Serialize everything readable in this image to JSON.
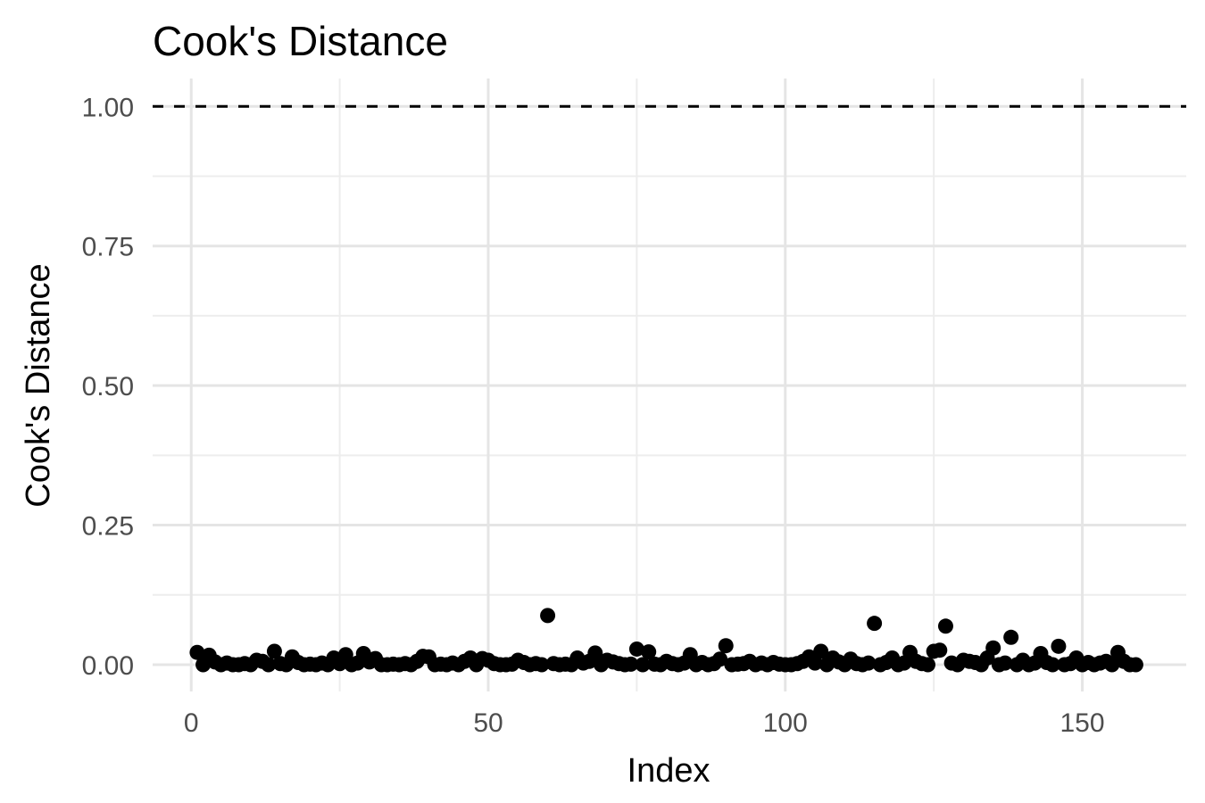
{
  "chart_data": {
    "type": "scatter",
    "title": "Cook's Distance",
    "xlabel": "Index",
    "ylabel": "Cook's Distance",
    "xlim": [
      -6.5,
      167.5
    ],
    "ylim": [
      -0.048,
      1.05
    ],
    "x_ticks": [
      0,
      50,
      100,
      150
    ],
    "x_tick_labels": [
      "0",
      "50",
      "100",
      "150"
    ],
    "x_minor_ticks": [
      25,
      75,
      125
    ],
    "y_ticks": [
      0,
      0.25,
      0.5,
      0.75,
      1
    ],
    "y_tick_labels": [
      "0.00",
      "0.25",
      "0.50",
      "0.75",
      "1.00"
    ],
    "y_minor_ticks": [
      0.125,
      0.375,
      0.625,
      0.875
    ],
    "reference_line": {
      "y": 1.0,
      "style": "dashed",
      "color": "#000000"
    },
    "grid": true,
    "legend": "none",
    "point_color": "#000000",
    "points": [
      {
        "x": 1,
        "y": 0.022
      },
      {
        "x": 2,
        "y": 0.0
      },
      {
        "x": 3,
        "y": 0.017
      },
      {
        "x": 4,
        "y": 0.005
      },
      {
        "x": 5,
        "y": 0.0
      },
      {
        "x": 6,
        "y": 0.003
      },
      {
        "x": 7,
        "y": 0.0
      },
      {
        "x": 8,
        "y": 0.0
      },
      {
        "x": 9,
        "y": 0.002
      },
      {
        "x": 10,
        "y": 0.0
      },
      {
        "x": 11,
        "y": 0.008
      },
      {
        "x": 12,
        "y": 0.006
      },
      {
        "x": 13,
        "y": 0.0
      },
      {
        "x": 14,
        "y": 0.024
      },
      {
        "x": 15,
        "y": 0.002
      },
      {
        "x": 16,
        "y": 0.0
      },
      {
        "x": 17,
        "y": 0.014
      },
      {
        "x": 18,
        "y": 0.004
      },
      {
        "x": 19,
        "y": 0.0
      },
      {
        "x": 20,
        "y": 0.001
      },
      {
        "x": 21,
        "y": 0.0
      },
      {
        "x": 22,
        "y": 0.003
      },
      {
        "x": 23,
        "y": 0.0
      },
      {
        "x": 24,
        "y": 0.012
      },
      {
        "x": 25,
        "y": 0.002
      },
      {
        "x": 26,
        "y": 0.018
      },
      {
        "x": 27,
        "y": 0.0
      },
      {
        "x": 28,
        "y": 0.003
      },
      {
        "x": 29,
        "y": 0.02
      },
      {
        "x": 30,
        "y": 0.005
      },
      {
        "x": 31,
        "y": 0.011
      },
      {
        "x": 32,
        "y": 0.0
      },
      {
        "x": 33,
        "y": 0.0
      },
      {
        "x": 34,
        "y": 0.001
      },
      {
        "x": 35,
        "y": 0.0
      },
      {
        "x": 36,
        "y": 0.002
      },
      {
        "x": 37,
        "y": 0.0
      },
      {
        "x": 38,
        "y": 0.006
      },
      {
        "x": 39,
        "y": 0.015
      },
      {
        "x": 40,
        "y": 0.014
      },
      {
        "x": 41,
        "y": 0.0
      },
      {
        "x": 42,
        "y": 0.001
      },
      {
        "x": 43,
        "y": 0.0
      },
      {
        "x": 44,
        "y": 0.003
      },
      {
        "x": 45,
        "y": 0.0
      },
      {
        "x": 46,
        "y": 0.006
      },
      {
        "x": 47,
        "y": 0.012
      },
      {
        "x": 48,
        "y": 0.0
      },
      {
        "x": 49,
        "y": 0.011
      },
      {
        "x": 50,
        "y": 0.008
      },
      {
        "x": 51,
        "y": 0.002
      },
      {
        "x": 52,
        "y": 0.0
      },
      {
        "x": 53,
        "y": 0.0
      },
      {
        "x": 54,
        "y": 0.001
      },
      {
        "x": 55,
        "y": 0.008
      },
      {
        "x": 56,
        "y": 0.004
      },
      {
        "x": 57,
        "y": 0.0
      },
      {
        "x": 58,
        "y": 0.002
      },
      {
        "x": 59,
        "y": 0.0
      },
      {
        "x": 60,
        "y": 0.088
      },
      {
        "x": 61,
        "y": 0.002
      },
      {
        "x": 62,
        "y": 0.0
      },
      {
        "x": 63,
        "y": 0.001
      },
      {
        "x": 64,
        "y": 0.0
      },
      {
        "x": 65,
        "y": 0.012
      },
      {
        "x": 66,
        "y": 0.003
      },
      {
        "x": 67,
        "y": 0.006
      },
      {
        "x": 68,
        "y": 0.021
      },
      {
        "x": 69,
        "y": 0.0
      },
      {
        "x": 70,
        "y": 0.008
      },
      {
        "x": 71,
        "y": 0.005
      },
      {
        "x": 72,
        "y": 0.002
      },
      {
        "x": 73,
        "y": 0.0
      },
      {
        "x": 74,
        "y": 0.001
      },
      {
        "x": 75,
        "y": 0.028
      },
      {
        "x": 76,
        "y": 0.0
      },
      {
        "x": 77,
        "y": 0.023
      },
      {
        "x": 78,
        "y": 0.001
      },
      {
        "x": 79,
        "y": 0.0
      },
      {
        "x": 80,
        "y": 0.006
      },
      {
        "x": 81,
        "y": 0.002
      },
      {
        "x": 82,
        "y": 0.0
      },
      {
        "x": 83,
        "y": 0.003
      },
      {
        "x": 84,
        "y": 0.018
      },
      {
        "x": 85,
        "y": 0.0
      },
      {
        "x": 86,
        "y": 0.004
      },
      {
        "x": 87,
        "y": 0.0
      },
      {
        "x": 88,
        "y": 0.002
      },
      {
        "x": 89,
        "y": 0.01
      },
      {
        "x": 90,
        "y": 0.034
      },
      {
        "x": 91,
        "y": 0.0
      },
      {
        "x": 92,
        "y": 0.001
      },
      {
        "x": 93,
        "y": 0.002
      },
      {
        "x": 94,
        "y": 0.006
      },
      {
        "x": 95,
        "y": 0.0
      },
      {
        "x": 96,
        "y": 0.003
      },
      {
        "x": 97,
        "y": 0.0
      },
      {
        "x": 98,
        "y": 0.004
      },
      {
        "x": 99,
        "y": 0.001
      },
      {
        "x": 100,
        "y": 0.0
      },
      {
        "x": 101,
        "y": 0.0
      },
      {
        "x": 102,
        "y": 0.002
      },
      {
        "x": 103,
        "y": 0.006
      },
      {
        "x": 104,
        "y": 0.014
      },
      {
        "x": 105,
        "y": 0.003
      },
      {
        "x": 106,
        "y": 0.024
      },
      {
        "x": 107,
        "y": 0.0
      },
      {
        "x": 108,
        "y": 0.012
      },
      {
        "x": 109,
        "y": 0.005
      },
      {
        "x": 110,
        "y": 0.0
      },
      {
        "x": 111,
        "y": 0.01
      },
      {
        "x": 112,
        "y": 0.002
      },
      {
        "x": 113,
        "y": 0.0
      },
      {
        "x": 114,
        "y": 0.003
      },
      {
        "x": 115,
        "y": 0.074
      },
      {
        "x": 116,
        "y": 0.0
      },
      {
        "x": 117,
        "y": 0.004
      },
      {
        "x": 118,
        "y": 0.012
      },
      {
        "x": 119,
        "y": 0.0
      },
      {
        "x": 120,
        "y": 0.003
      },
      {
        "x": 121,
        "y": 0.022
      },
      {
        "x": 122,
        "y": 0.006
      },
      {
        "x": 123,
        "y": 0.002
      },
      {
        "x": 124,
        "y": 0.0
      },
      {
        "x": 125,
        "y": 0.024
      },
      {
        "x": 126,
        "y": 0.026
      },
      {
        "x": 127,
        "y": 0.069
      },
      {
        "x": 128,
        "y": 0.003
      },
      {
        "x": 129,
        "y": 0.0
      },
      {
        "x": 130,
        "y": 0.008
      },
      {
        "x": 131,
        "y": 0.006
      },
      {
        "x": 132,
        "y": 0.004
      },
      {
        "x": 133,
        "y": 0.0
      },
      {
        "x": 134,
        "y": 0.012
      },
      {
        "x": 135,
        "y": 0.03
      },
      {
        "x": 136,
        "y": 0.0
      },
      {
        "x": 137,
        "y": 0.003
      },
      {
        "x": 138,
        "y": 0.049
      },
      {
        "x": 139,
        "y": 0.0
      },
      {
        "x": 140,
        "y": 0.008
      },
      {
        "x": 141,
        "y": 0.0
      },
      {
        "x": 142,
        "y": 0.003
      },
      {
        "x": 143,
        "y": 0.02
      },
      {
        "x": 144,
        "y": 0.004
      },
      {
        "x": 145,
        "y": 0.0
      },
      {
        "x": 146,
        "y": 0.033
      },
      {
        "x": 147,
        "y": 0.0
      },
      {
        "x": 148,
        "y": 0.002
      },
      {
        "x": 149,
        "y": 0.012
      },
      {
        "x": 150,
        "y": 0.0
      },
      {
        "x": 151,
        "y": 0.004
      },
      {
        "x": 152,
        "y": 0.0
      },
      {
        "x": 153,
        "y": 0.003
      },
      {
        "x": 154,
        "y": 0.006
      },
      {
        "x": 155,
        "y": 0.0
      },
      {
        "x": 156,
        "y": 0.022
      },
      {
        "x": 157,
        "y": 0.006
      },
      {
        "x": 158,
        "y": 0.0
      },
      {
        "x": 159,
        "y": 0.0
      }
    ]
  }
}
